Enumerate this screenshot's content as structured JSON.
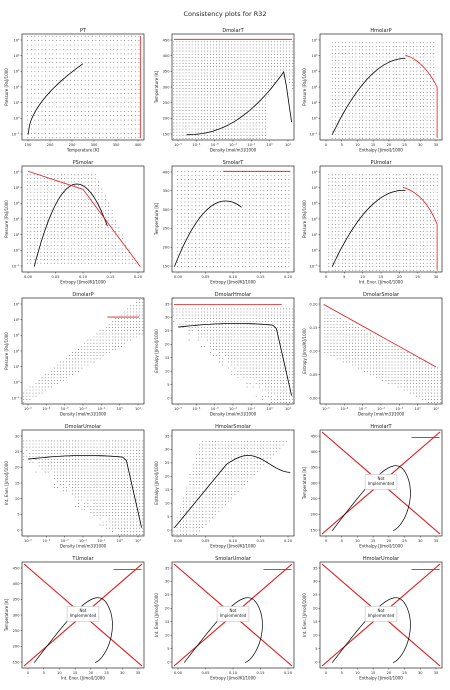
{
  "page": {
    "title": "Consistency plots for R32"
  },
  "colors": {
    "ok_points": "#000000",
    "limit_line": "#e41a1c",
    "frame": "#000000",
    "note_box": "#d0d0d0"
  },
  "chart_data": [
    {
      "type": "scatter",
      "title": "PT",
      "xlabel": "Temperature [K]",
      "ylabel": "Pressure [Pa]/1000",
      "x_ticks": [
        "150",
        "200",
        "250",
        "300",
        "350",
        "400"
      ],
      "y_ticks": [
        "10⁻²",
        "10⁰",
        "10¹",
        "10²",
        "10³",
        "10⁴",
        "10⁵"
      ],
      "xlim": [
        140,
        460
      ],
      "ylog": true
    },
    {
      "type": "scatter",
      "title": "DmolarT",
      "xlabel": "Density [mol/m3]/1000",
      "ylabel": "Temperature [K]",
      "x_ticks": [
        "10⁻⁵",
        "10⁻⁴",
        "10⁻³",
        "10⁻²",
        "10⁻¹",
        "10⁰",
        "10¹"
      ],
      "y_ticks": [
        "150",
        "200",
        "250",
        "300",
        "350",
        "400",
        "450"
      ],
      "ylim": [
        140,
        460
      ],
      "xlog": true
    },
    {
      "type": "scatter",
      "title": "HmolarP",
      "xlabel": "Enthalpy [J/mol]/1000",
      "ylabel": "Pressure [Pa]/1000",
      "x_ticks": [
        "0",
        "5",
        "10",
        "15",
        "20",
        "25",
        "30",
        "35"
      ],
      "y_ticks": [
        "10⁻²",
        "10⁰",
        "10¹",
        "10²",
        "10³",
        "10⁴",
        "10⁵"
      ],
      "xlim": [
        -2,
        36
      ],
      "ylog": true
    },
    {
      "type": "scatter",
      "title": "PSmolar",
      "xlabel": "Entropy [J/mol/K]/1000",
      "ylabel": "Pressure [Pa]/1000",
      "x_ticks": [
        "0.00",
        "0.05",
        "0.10",
        "0.15",
        "0.20"
      ],
      "y_ticks": [
        "10⁻²",
        "10⁰",
        "10¹",
        "10²",
        "10³",
        "10⁴",
        "10⁵"
      ],
      "xlim": [
        -0.01,
        0.22
      ],
      "ylog": true
    },
    {
      "type": "scatter",
      "title": "SmolarT",
      "xlabel": "Entropy [J/mol/K]/1000",
      "ylabel": "Temperature [K]",
      "x_ticks": [
        "0.00",
        "0.05",
        "0.10",
        "0.15",
        "0.20"
      ],
      "y_ticks": [
        "150",
        "200",
        "250",
        "300",
        "350",
        "400"
      ],
      "xlim": [
        -0.01,
        0.22
      ],
      "ylim": [
        140,
        460
      ]
    },
    {
      "type": "scatter",
      "title": "PUmolar",
      "xlabel": "Int. Ener. [J/mol]/1000",
      "ylabel": "Pressure [Pa]/1000",
      "x_ticks": [
        "0",
        "5",
        "10",
        "15",
        "20",
        "25",
        "30"
      ],
      "y_ticks": [
        "10⁻²",
        "10⁰",
        "10¹",
        "10²",
        "10³",
        "10⁴",
        "10⁵"
      ],
      "xlim": [
        -2,
        35
      ],
      "ylog": true
    },
    {
      "type": "scatter",
      "title": "DmolarP",
      "xlabel": "Density [mol/m3]/1000",
      "ylabel": "Pressure [Pa]/1000",
      "x_ticks": [
        "10⁻⁵",
        "10⁻⁴",
        "10⁻³",
        "10⁻²",
        "10⁻¹",
        "10⁰",
        "10¹"
      ],
      "y_ticks": [
        "10⁻²",
        "10⁰",
        "10¹",
        "10²",
        "10³",
        "10⁴",
        "10⁵"
      ],
      "xlog": true,
      "ylog": true
    },
    {
      "type": "scatter",
      "title": "DmolarHmolar",
      "xlabel": "Density [mol/m3]/1000",
      "ylabel": "Enthalpy [J/mol]/1000",
      "x_ticks": [
        "10⁻⁵",
        "10⁻⁴",
        "10⁻³",
        "10⁻²",
        "10⁻¹",
        "10⁰",
        "10¹"
      ],
      "y_ticks": [
        "0",
        "5",
        "10",
        "15",
        "20",
        "25",
        "30",
        "35"
      ],
      "ylim": [
        -2,
        37
      ],
      "xlog": true
    },
    {
      "type": "scatter",
      "title": "DmolarSmolar",
      "xlabel": "Density [mol/m3]/1000",
      "ylabel": "Entropy [J/mol/K]/1000",
      "x_ticks": [
        "10⁻⁵",
        "10⁻⁴",
        "10⁻³",
        "10⁻²",
        "10⁻¹",
        "10⁰",
        "10¹"
      ],
      "y_ticks": [
        "0.00",
        "0.05",
        "0.10",
        "0.15",
        "0.20"
      ],
      "ylim": [
        -0.01,
        0.23
      ],
      "xlog": true
    },
    {
      "type": "scatter",
      "title": "DmolarUmolar",
      "xlabel": "Density [mol/m3]/1000",
      "ylabel": "Int. Ener. [J/mol]/1000",
      "x_ticks": [
        "10⁻⁵",
        "10⁻⁴",
        "10⁻³",
        "10⁻²",
        "10⁻¹",
        "10⁰",
        "10¹"
      ],
      "y_ticks": [
        "0",
        "5",
        "10",
        "15",
        "20",
        "25",
        "30"
      ],
      "ylim": [
        -2,
        34
      ],
      "xlog": true
    },
    {
      "type": "scatter",
      "title": "HmolarSmolar",
      "xlabel": "Entropy [J/mol/K]/1000",
      "ylabel": "Enthalpy [J/mol]/1000",
      "x_ticks": [
        "0.00",
        "0.05",
        "0.10",
        "0.15",
        "0.20"
      ],
      "y_ticks": [
        "0",
        "5",
        "10",
        "15",
        "20",
        "25",
        "30",
        "35"
      ],
      "xlim": [
        -0.01,
        0.22
      ],
      "ylim": [
        -2,
        37
      ]
    },
    {
      "type": "scatter",
      "title": "HmolarT",
      "xlabel": "Enthalpy [J/mol]/1000",
      "ylabel": "Temperature [K]",
      "x_ticks": [
        "0",
        "5",
        "10",
        "15",
        "20",
        "25",
        "30",
        "35"
      ],
      "y_ticks": [
        "150",
        "200",
        "250",
        "300",
        "350",
        "400",
        "450"
      ],
      "xlim": [
        -2,
        38
      ],
      "ylim": [
        120,
        470
      ],
      "note": "Not\nImplemented"
    },
    {
      "type": "scatter",
      "title": "TUmolar",
      "xlabel": "Int. Ener. [J/mol]/1000",
      "ylabel": "Temperature [K]",
      "x_ticks": [
        "0",
        "5",
        "10",
        "15",
        "20",
        "25",
        "30",
        "35"
      ],
      "y_ticks": [
        "150",
        "200",
        "250",
        "300",
        "350",
        "400",
        "450"
      ],
      "xlim": [
        -2,
        36
      ],
      "ylim": [
        120,
        470
      ],
      "note": "Not\nImplemented"
    },
    {
      "type": "scatter",
      "title": "SmolarUmolar",
      "xlabel": "Entropy [J/mol/K]/1000",
      "ylabel": "Int. Ener. [J/mol]/1000",
      "x_ticks": [
        "0.00",
        "0.05",
        "0.10",
        "0.15",
        "0.20"
      ],
      "y_ticks": [
        "0",
        "5",
        "10",
        "15",
        "20",
        "25",
        "30",
        "35"
      ],
      "xlim": [
        -0.02,
        0.22
      ],
      "ylim": [
        -2,
        36
      ],
      "note": "Not\nImplemented"
    },
    {
      "type": "scatter",
      "title": "HmolarUmolar",
      "xlabel": "Enthalpy [J/mol]/1000",
      "ylabel": "Int. Ener. [J/mol]/1000",
      "x_ticks": [
        "0",
        "5",
        "10",
        "15",
        "20",
        "25",
        "30",
        "35"
      ],
      "y_ticks": [
        "0",
        "5",
        "10",
        "15",
        "20",
        "25",
        "30",
        "35"
      ],
      "xlim": [
        -2,
        36
      ],
      "ylim": [
        -2,
        36
      ],
      "note": "Not\nImplemented"
    }
  ]
}
